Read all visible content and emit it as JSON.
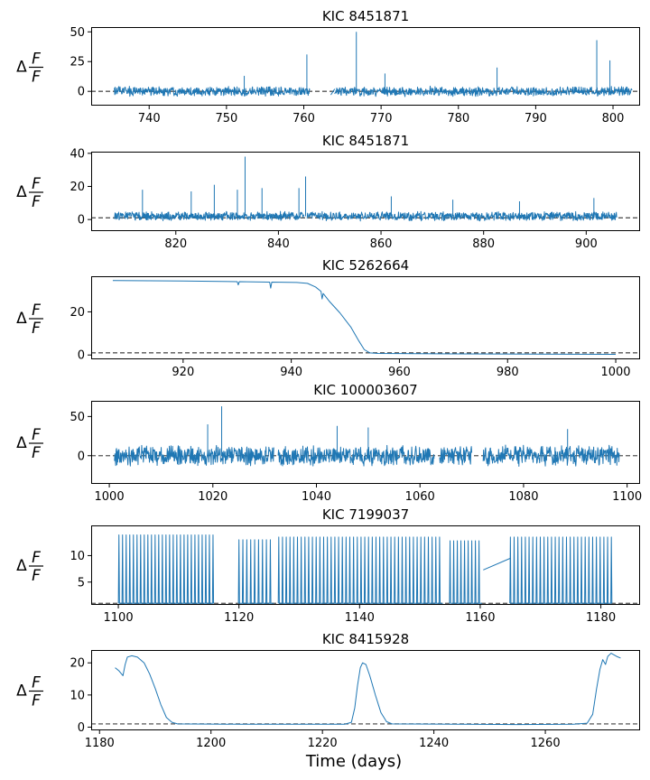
{
  "figure": {
    "xlabel": "Time (days)"
  },
  "ylabel": {
    "delta": "Δ",
    "numerator": "F",
    "denominator": "F"
  },
  "colors": {
    "series": "#1f77b4",
    "refline": "#555555"
  },
  "chart_data": [
    {
      "type": "line",
      "title": "KIC 8451871",
      "xlim": [
        732.5,
        803.5
      ],
      "ylim": [
        -12,
        54
      ],
      "xticks": [
        740,
        750,
        760,
        770,
        780,
        790,
        800
      ],
      "yticks": [
        0,
        25,
        50
      ],
      "refline_y": 0,
      "noise": {
        "base": 0,
        "amp": 4.5,
        "segments": [
          [
            735.5,
            760.8
          ],
          [
            764.0,
            802.5
          ]
        ]
      },
      "points": [
        [
          763.5,
          -3
        ],
        [
          764.0,
          2
        ]
      ],
      "spikes": [
        [
          760.4,
          31
        ],
        [
          766.8,
          50
        ],
        [
          785.0,
          20
        ],
        [
          797.9,
          43
        ],
        [
          799.6,
          26
        ],
        [
          770.5,
          15
        ],
        [
          752.3,
          13
        ]
      ]
    },
    {
      "type": "line",
      "title": "KIC 8451871",
      "xlim": [
        803.5,
        910.5
      ],
      "ylim": [
        -7,
        41
      ],
      "xticks": [
        820,
        840,
        860,
        880,
        900
      ],
      "yticks": [
        0,
        20,
        40
      ],
      "refline_y": 1,
      "noise": {
        "base": 2,
        "amp": 3,
        "segments": [
          [
            808.0,
            845.0
          ],
          [
            845.6,
            906.0
          ]
        ]
      },
      "points": [],
      "spikes": [
        [
          813.5,
          18
        ],
        [
          823.0,
          17
        ],
        [
          827.5,
          21
        ],
        [
          832.0,
          18
        ],
        [
          833.5,
          38
        ],
        [
          836.8,
          19
        ],
        [
          844.0,
          19
        ],
        [
          845.3,
          26
        ],
        [
          862.0,
          14
        ],
        [
          901.5,
          13
        ],
        [
          874.0,
          12
        ],
        [
          887.0,
          11
        ]
      ]
    },
    {
      "type": "line",
      "title": "KIC 5262664",
      "xlim": [
        903.0,
        1004.5
      ],
      "ylim": [
        -2,
        36.5
      ],
      "xticks": [
        920,
        940,
        960,
        980,
        1000
      ],
      "yticks": [
        0,
        20
      ],
      "refline_y": 1,
      "noise": null,
      "points": [
        [
          907,
          34.5
        ],
        [
          920,
          34.3
        ],
        [
          930,
          34.0
        ],
        [
          930.2,
          32.5
        ],
        [
          930.4,
          34.0
        ],
        [
          936,
          33.8
        ],
        [
          936.2,
          31.0
        ],
        [
          936.4,
          33.8
        ],
        [
          941,
          33.6
        ],
        [
          943,
          33.2
        ],
        [
          944.5,
          31.5
        ],
        [
          945.5,
          29.5
        ],
        [
          945.7,
          26
        ],
        [
          945.9,
          28.5
        ],
        [
          947,
          25
        ],
        [
          949,
          19.5
        ],
        [
          951,
          13
        ],
        [
          952.5,
          6.5
        ],
        [
          953.5,
          2.5
        ],
        [
          954.5,
          1.0
        ],
        [
          956,
          0.7
        ],
        [
          970,
          0.5
        ],
        [
          985,
          0.4
        ],
        [
          1000,
          0.3
        ]
      ],
      "spikes": []
    },
    {
      "type": "line",
      "title": "KIC 100003607",
      "xlim": [
        996.5,
        1102.5
      ],
      "ylim": [
        -36,
        70
      ],
      "xticks": [
        1000,
        1020,
        1040,
        1060,
        1080,
        1100
      ],
      "yticks": [
        0,
        50
      ],
      "refline_y": 0,
      "noise": {
        "base": 0,
        "amp": 14,
        "segments": [
          [
            1001.0,
            1031.8
          ],
          [
            1032.6,
            1062.8
          ],
          [
            1063.8,
            1070.0
          ],
          [
            1072.2,
            1098.5
          ]
        ]
      },
      "points": [],
      "spikes": [
        [
          1021.7,
          63
        ],
        [
          1019.0,
          40
        ],
        [
          1044.0,
          38
        ],
        [
          1050.0,
          36
        ],
        [
          1088.5,
          34
        ]
      ]
    },
    {
      "type": "line",
      "title": "KIC 7199037",
      "xlim": [
        1095.5,
        1186.5
      ],
      "ylim": [
        0.7,
        15.7
      ],
      "xticks": [
        1100,
        1120,
        1140,
        1160,
        1180
      ],
      "yticks": [
        5,
        10
      ],
      "refline_y": 1,
      "noise": null,
      "points": [
        [
          1160.5,
          7.3
        ],
        [
          1165.0,
          9.5
        ]
      ],
      "pulses": {
        "base": 1.0,
        "groups": [
          {
            "start": 1100.1,
            "end": 1115.8,
            "step": 0.6,
            "height": 13.9
          },
          {
            "start": 1120.0,
            "end": 1125.8,
            "step": 0.65,
            "height": 13.0
          },
          {
            "start": 1126.6,
            "end": 1153.8,
            "step": 0.62,
            "height": 13.5
          },
          {
            "start": 1155.0,
            "end": 1160.3,
            "step": 0.6,
            "height": 12.8
          },
          {
            "start": 1165.0,
            "end": 1181.8,
            "step": 0.62,
            "height": 13.5
          }
        ]
      },
      "spikes": []
    },
    {
      "type": "line",
      "title": "KIC 8415928",
      "xlim": [
        1178.5,
        1277.0
      ],
      "ylim": [
        -1,
        24
      ],
      "xticks": [
        1180,
        1200,
        1220,
        1240,
        1260
      ],
      "yticks": [
        0,
        10,
        20
      ],
      "refline_y": 1,
      "noise": null,
      "points": [
        [
          1182.8,
          18.5
        ],
        [
          1183.5,
          17.5
        ],
        [
          1184.2,
          16.0
        ],
        [
          1184.6,
          19.5
        ],
        [
          1185.0,
          21.8
        ],
        [
          1185.8,
          22.2
        ],
        [
          1186.8,
          21.8
        ],
        [
          1188.0,
          20.0
        ],
        [
          1189.0,
          16.5
        ],
        [
          1190.0,
          12.0
        ],
        [
          1191.0,
          7.0
        ],
        [
          1192.0,
          3.0
        ],
        [
          1193.0,
          1.5
        ],
        [
          1194.0,
          1.0
        ],
        [
          1205.0,
          0.9
        ],
        [
          1215.0,
          0.9
        ],
        [
          1224.0,
          0.9
        ],
        [
          1225.2,
          1.5
        ],
        [
          1225.8,
          6.0
        ],
        [
          1226.3,
          13.0
        ],
        [
          1226.8,
          18.5
        ],
        [
          1227.2,
          20.0
        ],
        [
          1227.8,
          19.5
        ],
        [
          1228.5,
          16.0
        ],
        [
          1229.5,
          10.0
        ],
        [
          1230.5,
          4.5
        ],
        [
          1231.5,
          1.7
        ],
        [
          1232.5,
          1.0
        ],
        [
          1245.0,
          0.9
        ],
        [
          1255.0,
          0.8
        ],
        [
          1265.0,
          0.9
        ],
        [
          1267.5,
          1.2
        ],
        [
          1268.5,
          4.0
        ],
        [
          1269.2,
          12.0
        ],
        [
          1269.8,
          18.0
        ],
        [
          1270.3,
          21.0
        ],
        [
          1270.8,
          19.5
        ],
        [
          1271.2,
          22.0
        ],
        [
          1271.8,
          23.0
        ],
        [
          1272.8,
          22.0
        ],
        [
          1273.5,
          21.5
        ]
      ],
      "spikes": []
    }
  ]
}
